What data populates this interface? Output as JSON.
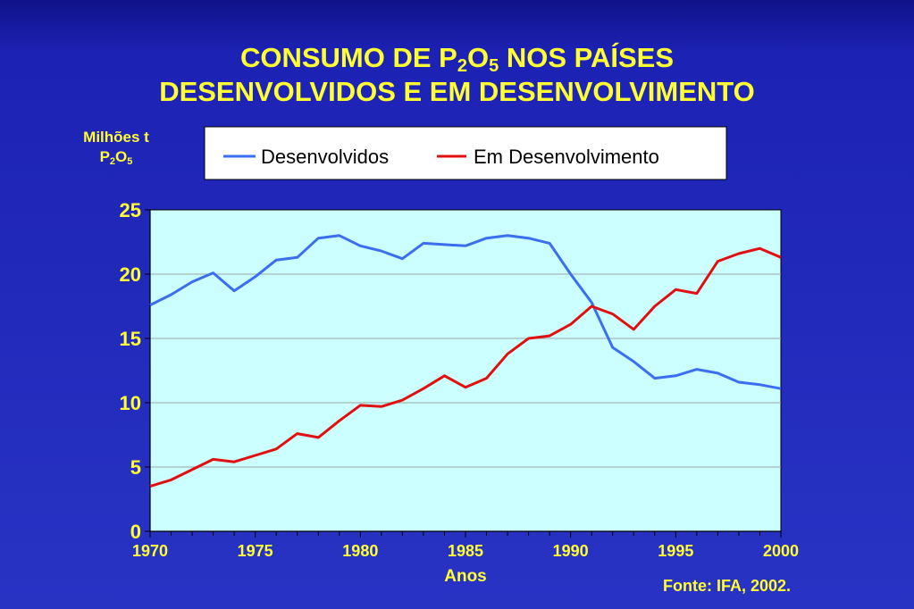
{
  "header": {
    "title_part1": "CONSUMO DE  P",
    "title_sub1": "2",
    "title_part2": "O",
    "title_sub2": "5",
    "title_part3": " NOS PAÍSES",
    "title_line2": "DESENVOLVIDOS E EM DESENVOLVIMENTO"
  },
  "ylabel": {
    "line1": "Milhões t",
    "line2_a": "P",
    "line2_sub1": "2",
    "line2_b": "O",
    "line2_sub2": "5"
  },
  "source": "Fonte: IFA, 2002.",
  "colors": {
    "title": "#ffff33",
    "plot_bg": "#ccffff",
    "desenvolvidos": "#3a6ff0",
    "em_desenvolvimento": "#e01010"
  },
  "chart_data": {
    "type": "line",
    "xlabel": "Anos",
    "ylabel": "Milhões t P2O5",
    "xlim": [
      1970,
      2000
    ],
    "ylim": [
      0,
      25
    ],
    "x_ticks": [
      1970,
      1975,
      1980,
      1985,
      1990,
      1995,
      2000
    ],
    "y_ticks": [
      0,
      5,
      10,
      15,
      20,
      25
    ],
    "grid": "horizontal",
    "legend_position": "top-center",
    "x": [
      1970,
      1971,
      1972,
      1973,
      1974,
      1975,
      1976,
      1977,
      1978,
      1979,
      1980,
      1981,
      1982,
      1983,
      1984,
      1985,
      1986,
      1987,
      1988,
      1989,
      1990,
      1991,
      1992,
      1993,
      1994,
      1995,
      1996,
      1997,
      1998,
      1999,
      2000
    ],
    "series": [
      {
        "name": "Desenvolvidos",
        "color": "#3a6ff0",
        "values": [
          17.6,
          18.4,
          19.4,
          20.1,
          18.7,
          19.8,
          21.1,
          21.3,
          22.8,
          23.0,
          22.2,
          21.8,
          21.2,
          22.4,
          22.3,
          22.2,
          22.8,
          23.0,
          22.8,
          22.4,
          20.0,
          17.8,
          14.3,
          13.2,
          11.9,
          12.1,
          12.6,
          12.3,
          11.6,
          11.4,
          11.1
        ]
      },
      {
        "name": "Em Desenvolvimento",
        "color": "#e01010",
        "values": [
          3.5,
          4.0,
          4.8,
          5.6,
          5.4,
          5.9,
          6.4,
          7.6,
          7.3,
          8.6,
          9.8,
          9.7,
          10.2,
          11.1,
          12.1,
          11.2,
          11.9,
          13.8,
          15.0,
          15.2,
          16.1,
          17.5,
          16.9,
          15.7,
          17.5,
          18.8,
          18.5,
          21.0,
          21.6,
          22.0,
          21.3
        ]
      }
    ]
  }
}
